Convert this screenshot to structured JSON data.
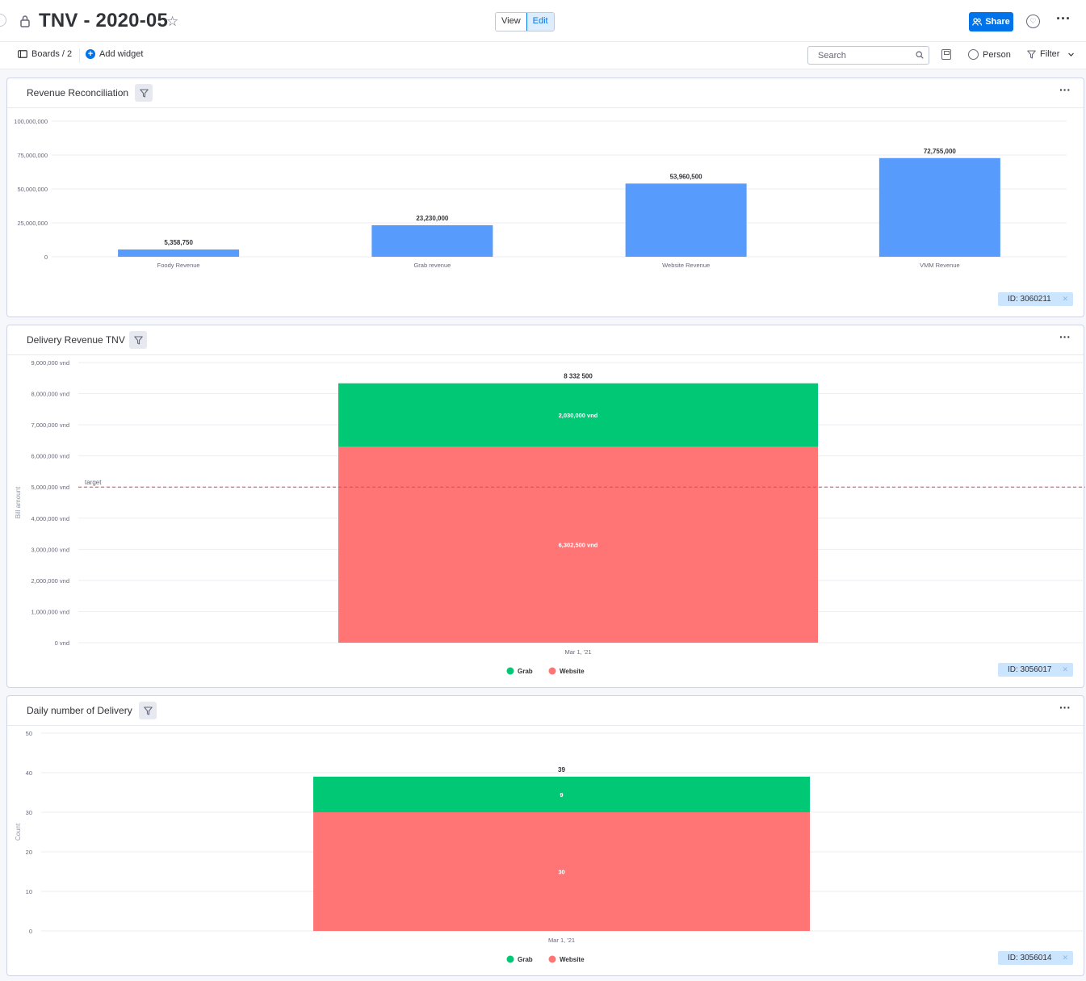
{
  "header": {
    "title": "TNV - 2020-05",
    "view_label": "View",
    "edit_label": "Edit",
    "share_label": "Share"
  },
  "toolbar": {
    "boards_label": "Boards / 2",
    "add_widget_label": "Add widget",
    "search_placeholder": "Search",
    "person_label": "Person",
    "filter_label": "Filter"
  },
  "widgets": [
    {
      "title": "Revenue Reconciliation",
      "id_label": "ID: 3060211",
      "chart_data": {
        "type": "bar",
        "categories": [
          "Foody Revenue",
          "Grab revenue",
          "Website Revenue",
          "VMM Revenue"
        ],
        "values": [
          5358750,
          23230000,
          53960500,
          72755000
        ],
        "value_labels": [
          "5,358,750",
          "23,230,000",
          "53,960,500",
          "72,755,000"
        ],
        "ylim": [
          0,
          100000000
        ],
        "y_ticks": [
          "0",
          "25,000,000",
          "50,000,000",
          "75,000,000",
          "100,000,000"
        ],
        "color": "#579bfc",
        "grid": true
      }
    },
    {
      "title": "Delivery Revenue TNV",
      "id_label": "ID: 3056017",
      "chart_data": {
        "type": "bar",
        "stacked": true,
        "categories": [
          "Mar 1, '21"
        ],
        "series": [
          {
            "name": "Website",
            "values": [
              6302500
            ],
            "labels": [
              "6,302,500 vnd"
            ],
            "color": "#ff7575"
          },
          {
            "name": "Grab",
            "values": [
              2030000
            ],
            "labels": [
              "2,030,000 vnd"
            ],
            "color": "#00c875"
          }
        ],
        "total_label": "8 332 500",
        "ylabel": "Bill amount",
        "ylim": [
          0,
          9000000
        ],
        "y_ticks": [
          "0 vnd",
          "1,000,000 vnd",
          "2,000,000 vnd",
          "3,000,000 vnd",
          "4,000,000 vnd",
          "5,000,000 vnd",
          "6,000,000 vnd",
          "7,000,000 vnd",
          "8,000,000 vnd",
          "9,000,000 vnd"
        ],
        "target": {
          "value": 5000000,
          "label": "target",
          "color": "#e2445c"
        },
        "legend": [
          "Grab",
          "Website"
        ],
        "legend_position": "bottom",
        "grid": true
      }
    },
    {
      "title": "Daily number of Delivery",
      "id_label": "ID: 3056014",
      "chart_data": {
        "type": "bar",
        "stacked": true,
        "categories": [
          "Mar 1, '21"
        ],
        "series": [
          {
            "name": "Website",
            "values": [
              30
            ],
            "labels": [
              "30"
            ],
            "color": "#ff7575"
          },
          {
            "name": "Grab",
            "values": [
              9
            ],
            "labels": [
              "9"
            ],
            "color": "#00c875"
          }
        ],
        "total_label": "39",
        "ylabel": "Count",
        "ylim": [
          0,
          50
        ],
        "y_ticks": [
          "0",
          "10",
          "20",
          "30",
          "40",
          "50"
        ],
        "legend": [
          "Grab",
          "Website"
        ],
        "legend_position": "bottom",
        "grid": true
      }
    }
  ]
}
